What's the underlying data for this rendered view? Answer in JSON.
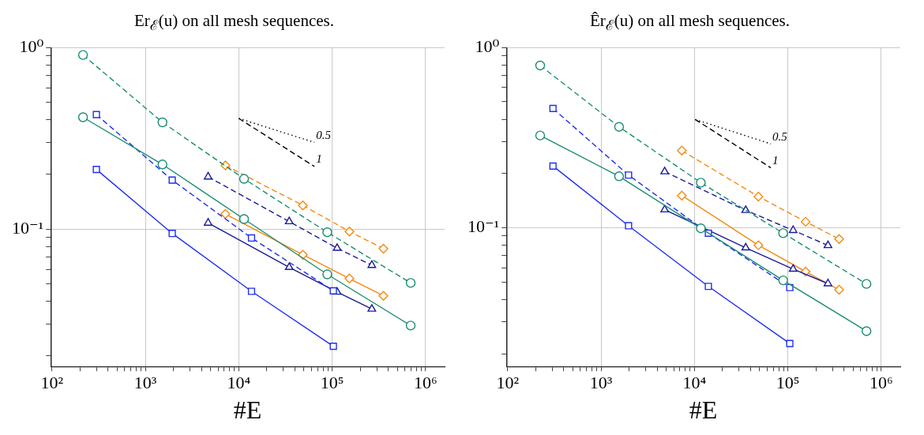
{
  "chart_data": [
    {
      "type": "line",
      "title": "Er$_{ℰ}$(u) on all mesh sequences.",
      "xlabel": "#E",
      "log": "xy",
      "grid": true,
      "legend": false,
      "xlim": [
        97,
        1600000
      ],
      "ylim": [
        0.0175,
        1
      ],
      "xticks": [
        {
          "value": 100,
          "label": "10²"
        },
        {
          "value": 200,
          "label": null
        },
        {
          "value": 300,
          "label": null
        },
        {
          "value": 400,
          "label": null
        },
        {
          "value": 500,
          "label": null
        },
        {
          "value": 600,
          "label": null
        },
        {
          "value": 700,
          "label": null
        },
        {
          "value": 800,
          "label": null
        },
        {
          "value": 900,
          "label": null
        },
        {
          "value": 1000,
          "label": "10³"
        },
        {
          "value": 2000,
          "label": null
        },
        {
          "value": 3000,
          "label": null
        },
        {
          "value": 4000,
          "label": null
        },
        {
          "value": 5000,
          "label": null
        },
        {
          "value": 6000,
          "label": null
        },
        {
          "value": 7000,
          "label": null
        },
        {
          "value": 8000,
          "label": null
        },
        {
          "value": 9000,
          "label": null
        },
        {
          "value": 10000,
          "label": "10⁴"
        },
        {
          "value": 20000,
          "label": null
        },
        {
          "value": 30000,
          "label": null
        },
        {
          "value": 40000,
          "label": null
        },
        {
          "value": 50000,
          "label": null
        },
        {
          "value": 60000,
          "label": null
        },
        {
          "value": 70000,
          "label": null
        },
        {
          "value": 80000,
          "label": null
        },
        {
          "value": 90000,
          "label": null
        },
        {
          "value": 100000,
          "label": "10⁵"
        },
        {
          "value": 200000,
          "label": null
        },
        {
          "value": 300000,
          "label": null
        },
        {
          "value": 400000,
          "label": null
        },
        {
          "value": 500000,
          "label": null
        },
        {
          "value": 600000,
          "label": null
        },
        {
          "value": 700000,
          "label": null
        },
        {
          "value": 800000,
          "label": null
        },
        {
          "value": 900000,
          "label": null
        },
        {
          "value": 1000000,
          "label": "10⁶"
        }
      ],
      "yticks": [
        {
          "value": 0.02,
          "label": null
        },
        {
          "value": 0.03,
          "label": null
        },
        {
          "value": 0.04,
          "label": null
        },
        {
          "value": 0.05,
          "label": null
        },
        {
          "value": 0.06,
          "label": null
        },
        {
          "value": 0.07,
          "label": null
        },
        {
          "value": 0.08,
          "label": null
        },
        {
          "value": 0.09,
          "label": null
        },
        {
          "value": 0.1,
          "label": "10⁻¹"
        },
        {
          "value": 0.2,
          "label": null
        },
        {
          "value": 0.3,
          "label": null
        },
        {
          "value": 0.4,
          "label": null
        },
        {
          "value": 0.5,
          "label": null
        },
        {
          "value": 0.6,
          "label": null
        },
        {
          "value": 0.7,
          "label": null
        },
        {
          "value": 0.8,
          "label": null
        },
        {
          "value": 0.9,
          "label": null
        },
        {
          "value": 1,
          "label": "10⁰"
        }
      ],
      "series": [
        {
          "color": "#1a8c73",
          "line_style": "dashed",
          "marker": "circle",
          "x": [
            215,
            1525,
            11400,
            88700,
            693000
          ],
          "values": [
            0.91,
            0.387,
            0.189,
            0.096,
            0.0505
          ]
        },
        {
          "color": "#1a8c73",
          "line_style": "solid",
          "marker": "circle",
          "x": [
            215,
            1525,
            11400,
            88700,
            693000
          ],
          "values": [
            0.413,
            0.227,
            0.1135,
            0.0563,
            0.0294
          ]
        },
        {
          "color": "#1f2ff0",
          "line_style": "dashed",
          "marker": "square",
          "x": [
            299,
            1940,
            13700,
            103000
          ],
          "values": [
            0.427,
            0.186,
            0.0893,
            0.0457
          ]
        },
        {
          "color": "#1f2ff0",
          "line_style": "solid",
          "marker": "square",
          "x": [
            299,
            1940,
            13700,
            103000
          ],
          "values": [
            0.213,
            0.0946,
            0.0454,
            0.0226
          ]
        },
        {
          "color": "#1a1a9c",
          "line_style": "dashed",
          "marker": "triangle",
          "x": [
            4700,
            34700,
            113000,
            266000
          ],
          "values": [
            0.194,
            0.11,
            0.0785,
            0.0632
          ]
        },
        {
          "color": "#1a1a9c",
          "line_style": "solid",
          "marker": "triangle",
          "x": [
            4700,
            34700,
            113000,
            266000
          ],
          "values": [
            0.108,
            0.0616,
            0.045,
            0.0363
          ]
        },
        {
          "color": "#f58a0f",
          "line_style": "dashed",
          "marker": "diamond",
          "x": [
            7200,
            48600,
            153000,
            354000
          ],
          "values": [
            0.224,
            0.135,
            0.097,
            0.078
          ]
        },
        {
          "color": "#f58a0f",
          "line_style": "solid",
          "marker": "diamond",
          "x": [
            7200,
            48600,
            153000,
            354000
          ],
          "values": [
            0.121,
            0.0722,
            0.0534,
            0.0429
          ]
        },
        {
          "name": "0.5",
          "color": "#000000",
          "line_style": "dotted",
          "marker": "none",
          "x": [
            10000,
            64700
          ],
          "values": [
            0.407,
            0.3
          ]
        },
        {
          "name": "1",
          "color": "#000000",
          "line_style": "dashed",
          "marker": "none",
          "x": [
            10000,
            64700
          ],
          "values": [
            0.407,
            0.221
          ]
        }
      ]
    },
    {
      "type": "line",
      "title": "Êr$_{ℰ}$(u) on all mesh sequences.",
      "xlabel": "#E",
      "log": "xy",
      "grid": true,
      "legend": false,
      "xlim": [
        97,
        1600000
      ],
      "ylim": [
        0.017,
        1
      ],
      "xticks": [
        {
          "value": 100,
          "label": "10²"
        },
        {
          "value": 200,
          "label": null
        },
        {
          "value": 300,
          "label": null
        },
        {
          "value": 400,
          "label": null
        },
        {
          "value": 500,
          "label": null
        },
        {
          "value": 600,
          "label": null
        },
        {
          "value": 700,
          "label": null
        },
        {
          "value": 800,
          "label": null
        },
        {
          "value": 900,
          "label": null
        },
        {
          "value": 1000,
          "label": "10³"
        },
        {
          "value": 2000,
          "label": null
        },
        {
          "value": 3000,
          "label": null
        },
        {
          "value": 4000,
          "label": null
        },
        {
          "value": 5000,
          "label": null
        },
        {
          "value": 6000,
          "label": null
        },
        {
          "value": 7000,
          "label": null
        },
        {
          "value": 8000,
          "label": null
        },
        {
          "value": 9000,
          "label": null
        },
        {
          "value": 10000,
          "label": "10⁴"
        },
        {
          "value": 20000,
          "label": null
        },
        {
          "value": 30000,
          "label": null
        },
        {
          "value": 40000,
          "label": null
        },
        {
          "value": 50000,
          "label": null
        },
        {
          "value": 60000,
          "label": null
        },
        {
          "value": 70000,
          "label": null
        },
        {
          "value": 80000,
          "label": null
        },
        {
          "value": 90000,
          "label": null
        },
        {
          "value": 100000,
          "label": "10⁵"
        },
        {
          "value": 200000,
          "label": null
        },
        {
          "value": 300000,
          "label": null
        },
        {
          "value": 400000,
          "label": null
        },
        {
          "value": 500000,
          "label": null
        },
        {
          "value": 600000,
          "label": null
        },
        {
          "value": 700000,
          "label": null
        },
        {
          "value": 800000,
          "label": null
        },
        {
          "value": 900000,
          "label": null
        },
        {
          "value": 1000000,
          "label": "10⁶"
        }
      ],
      "yticks": [
        {
          "value": 0.02,
          "label": null
        },
        {
          "value": 0.03,
          "label": null
        },
        {
          "value": 0.04,
          "label": null
        },
        {
          "value": 0.05,
          "label": null
        },
        {
          "value": 0.06,
          "label": null
        },
        {
          "value": 0.07,
          "label": null
        },
        {
          "value": 0.08,
          "label": null
        },
        {
          "value": 0.09,
          "label": null
        },
        {
          "value": 0.1,
          "label": "10⁻¹"
        },
        {
          "value": 0.2,
          "label": null
        },
        {
          "value": 0.3,
          "label": null
        },
        {
          "value": 0.4,
          "label": null
        },
        {
          "value": 0.5,
          "label": null
        },
        {
          "value": 0.6,
          "label": null
        },
        {
          "value": 0.7,
          "label": null
        },
        {
          "value": 0.8,
          "label": null
        },
        {
          "value": 0.9,
          "label": null
        },
        {
          "value": 1,
          "label": "10⁰"
        }
      ],
      "series": [
        {
          "color": "#1a8c73",
          "line_style": "dashed",
          "marker": "circle",
          "x": [
            223,
            1560,
            11700,
            89100,
            695000
          ],
          "values": [
            0.795,
            0.363,
            0.178,
            0.0933,
            0.0488
          ]
        },
        {
          "color": "#1a8c73",
          "line_style": "solid",
          "marker": "circle",
          "x": [
            223,
            1560,
            11700,
            89100,
            695000
          ],
          "values": [
            0.325,
            0.193,
            0.0993,
            0.0511,
            0.0267
          ]
        },
        {
          "color": "#1f2ff0",
          "line_style": "dashed",
          "marker": "square",
          "x": [
            306,
            1970,
            14100,
            105000
          ],
          "values": [
            0.459,
            0.196,
            0.0933,
            0.0466
          ]
        },
        {
          "color": "#1f2ff0",
          "line_style": "solid",
          "marker": "square",
          "x": [
            306,
            1970,
            14100,
            105000
          ],
          "values": [
            0.22,
            0.1026,
            0.0473,
            0.0228
          ]
        },
        {
          "color": "#1a1a9c",
          "line_style": "dashed",
          "marker": "triangle",
          "x": [
            4800,
            35400,
            114000,
            269000
          ],
          "values": [
            0.205,
            0.125,
            0.0968,
            0.0798
          ]
        },
        {
          "color": "#1a1a9c",
          "line_style": "solid",
          "marker": "triangle",
          "x": [
            4800,
            35400,
            114000,
            269000
          ],
          "values": [
            0.126,
            0.0775,
            0.059,
            0.049
          ]
        },
        {
          "color": "#f58a0f",
          "line_style": "dashed",
          "marker": "diamond",
          "x": [
            7330,
            48400,
            155000,
            354000
          ],
          "values": [
            0.268,
            0.149,
            0.108,
            0.0866
          ]
        },
        {
          "color": "#f58a0f",
          "line_style": "solid",
          "marker": "diamond",
          "x": [
            7330,
            48400,
            155000,
            354000
          ],
          "values": [
            0.151,
            0.08,
            0.0571,
            0.0453
          ]
        },
        {
          "name": "0.5",
          "color": "#000000",
          "line_style": "dotted",
          "marker": "none",
          "x": [
            10200,
            65800
          ],
          "values": [
            0.399,
            0.292
          ]
        },
        {
          "name": "1",
          "color": "#000000",
          "line_style": "dashed",
          "marker": "none",
          "x": [
            10200,
            65800
          ],
          "values": [
            0.399,
            0.215
          ]
        }
      ]
    }
  ]
}
